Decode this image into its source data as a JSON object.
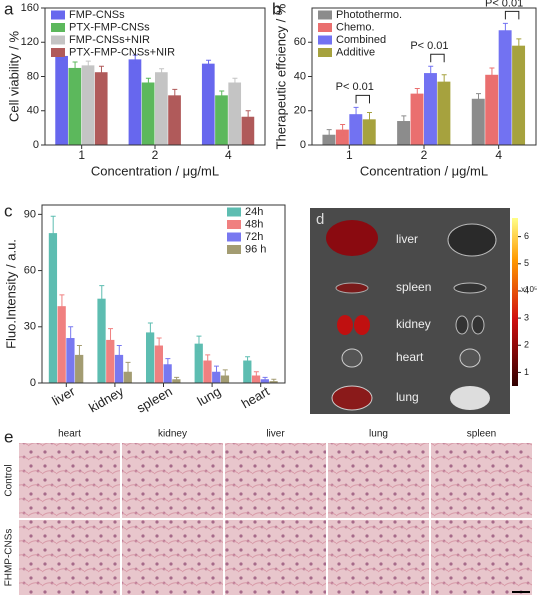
{
  "chart_data": [
    {
      "type": "bar",
      "panel": "a",
      "xlabel": "Concentration / μg/mL",
      "ylabel": "Cell viability / %",
      "categories": [
        "1",
        "2",
        "4"
      ],
      "ylim": [
        0,
        160
      ],
      "yticks": [
        0,
        40,
        80,
        120,
        160
      ],
      "legend": "upper left",
      "series": [
        {
          "name": "FMP-CNSs",
          "color": "#6767ee",
          "values": [
            104,
            100,
            95
          ],
          "errors": [
            5,
            5,
            4
          ]
        },
        {
          "name": "PTX-FMP-CNSs",
          "color": "#5cb85c",
          "values": [
            90,
            73,
            58
          ],
          "errors": [
            7,
            5,
            5
          ]
        },
        {
          "name": "FMP-CNSs+NIR",
          "color": "#c4c4c4",
          "values": [
            93,
            85,
            73
          ],
          "errors": [
            5,
            4,
            5
          ]
        },
        {
          "name": "PTX-FMP-CNSs+NIR",
          "color": "#b05a5a",
          "values": [
            85,
            58,
            33
          ],
          "errors": [
            7,
            7,
            7
          ]
        }
      ]
    },
    {
      "type": "bar",
      "panel": "b",
      "xlabel": "Concentration / μg/mL",
      "ylabel": "Therapeutic effciency / %",
      "categories": [
        "1",
        "2",
        "4"
      ],
      "ylim": [
        0,
        80
      ],
      "yticks": [
        0,
        20,
        40,
        60
      ],
      "legend": "upper left",
      "annotations": [
        "P< 0.01",
        "P< 0.01",
        "P< 0.01"
      ],
      "series": [
        {
          "name": "Photothermo.",
          "color": "#8c8c8c",
          "values": [
            6,
            14,
            27
          ],
          "errors": [
            3,
            3,
            3
          ]
        },
        {
          "name": "Chemo.",
          "color": "#ea6f6f",
          "values": [
            9,
            30,
            41
          ],
          "errors": [
            3,
            3,
            4
          ]
        },
        {
          "name": "Combined",
          "color": "#7272f2",
          "values": [
            18,
            42,
            67
          ],
          "errors": [
            4,
            4,
            4
          ]
        },
        {
          "name": "Additive",
          "color": "#a6a23e",
          "values": [
            15,
            37,
            58
          ],
          "errors": [
            4,
            4,
            4
          ]
        }
      ]
    },
    {
      "type": "bar",
      "panel": "c",
      "ylabel": "Fluo.Intensity / a.u.",
      "categories": [
        "liver",
        "kidney",
        "spleen",
        "lung",
        "heart"
      ],
      "ylim": [
        0,
        95
      ],
      "yticks": [
        0,
        30,
        60,
        90
      ],
      "legend": "upper right",
      "series": [
        {
          "name": "24h",
          "color": "#5dbdb1",
          "values": [
            80,
            45,
            27,
            21,
            12
          ],
          "errors": [
            9,
            7,
            5,
            4,
            2
          ]
        },
        {
          "name": "48h",
          "color": "#f08080",
          "values": [
            41,
            23,
            20,
            12,
            4
          ],
          "errors": [
            6,
            6,
            4,
            3,
            2
          ]
        },
        {
          "name": "72h",
          "color": "#7878f0",
          "values": [
            24,
            15,
            10,
            6,
            2
          ],
          "errors": [
            6,
            5,
            3,
            3,
            1
          ]
        },
        {
          "name": "96 h",
          "color": "#a39c72",
          "values": [
            15,
            6,
            2,
            4,
            1
          ],
          "errors": [
            5,
            5,
            1,
            3,
            1
          ]
        }
      ]
    }
  ],
  "panel_d": {
    "label": "d",
    "organs": [
      "liver",
      "spleen",
      "kidney",
      "heart",
      "lung"
    ],
    "colorbar_ticks": [
      1,
      2,
      3,
      4,
      5,
      6
    ],
    "colorbar_unit": "x10⁵"
  },
  "panel_e": {
    "label": "e",
    "columns": [
      "heart",
      "kidney",
      "liver",
      "lung",
      "spleen"
    ],
    "rows": [
      "Control",
      "FHMP-CNSs"
    ]
  }
}
